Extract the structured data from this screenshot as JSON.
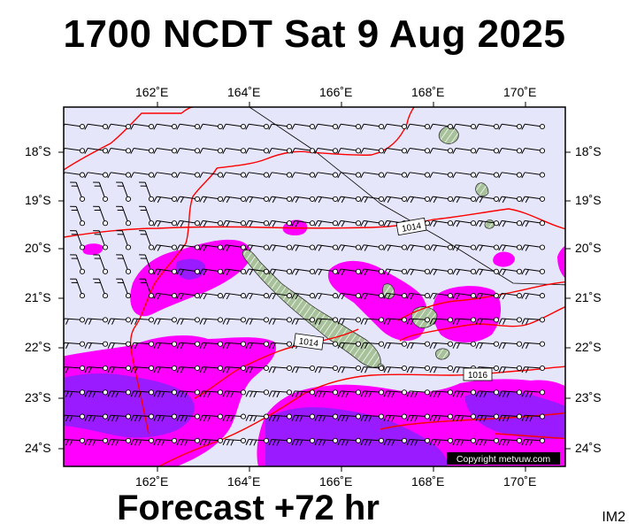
{
  "title": "1700 NCDT Sat 9 Aug 2025",
  "forecast_label": "Forecast +72 hr",
  "image_code": "IM2",
  "copyright": "Copyright metvuw.com",
  "map": {
    "lon_labels": [
      "162˚E",
      "164˚E",
      "166˚E",
      "168˚E",
      "170˚E"
    ],
    "lat_labels": [
      "18˚S",
      "19˚S",
      "20˚S",
      "21˚S",
      "22˚S",
      "23˚S",
      "24˚S"
    ],
    "isobar_labels": [
      "1014",
      "1014",
      "1016"
    ],
    "colors": {
      "ocean": "#e6e6fa",
      "rain_light": "#ff00ff",
      "rain_heavy": "#9a1bff",
      "isobar": "#ff0000",
      "land": "#a7c29a",
      "wind": "#000000"
    }
  }
}
